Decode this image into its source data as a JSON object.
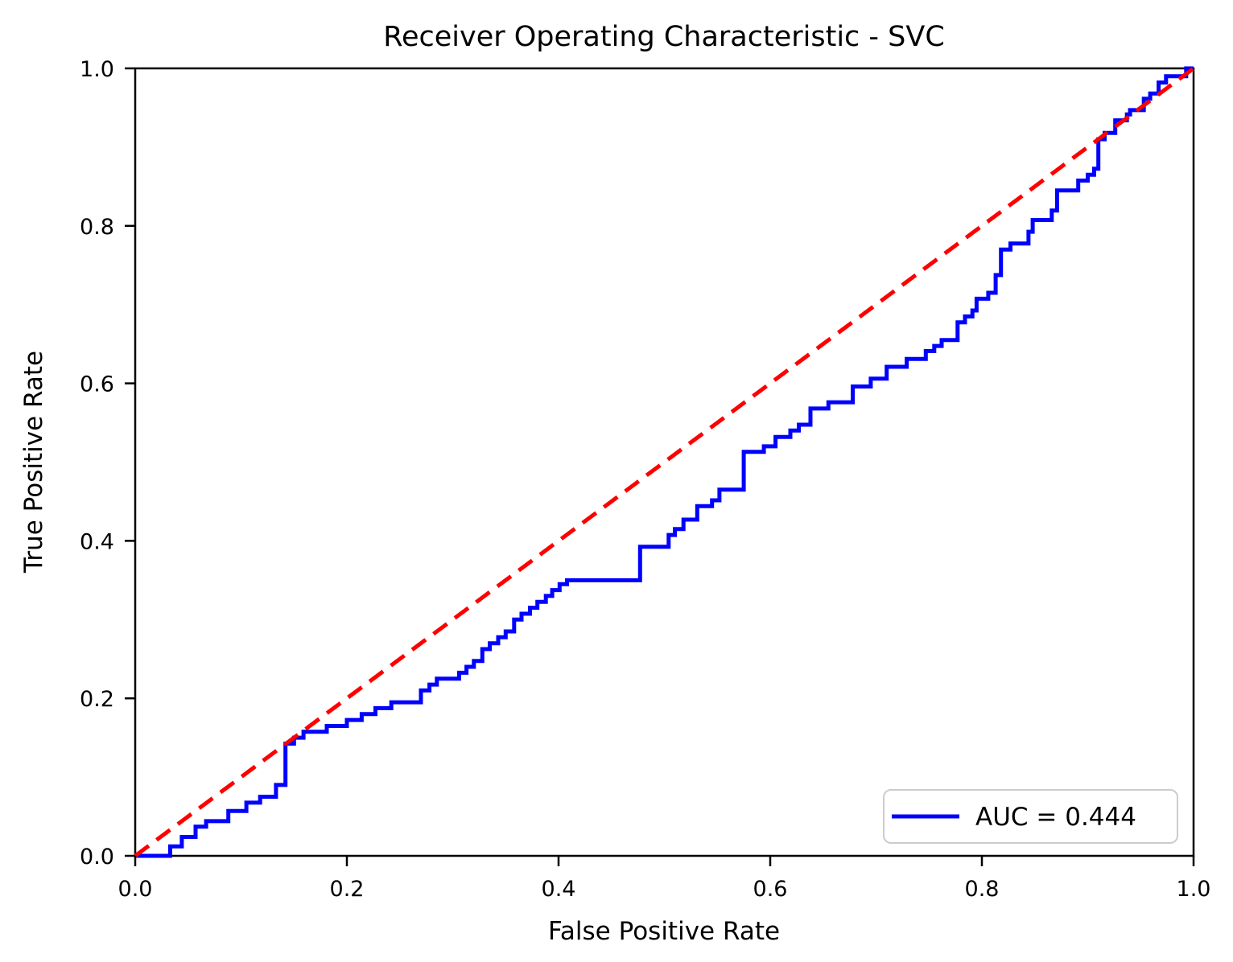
{
  "figure": {
    "background": "#ffffff"
  },
  "chart_data": {
    "type": "line",
    "title": "Receiver Operating Characteristic - SVC",
    "xlabel": "False Positive Rate",
    "ylabel": "True Positive Rate",
    "xlim": [
      0.0,
      1.0
    ],
    "ylim": [
      0.0,
      1.0
    ],
    "grid": false,
    "legend": {
      "label": "AUC = 0.444",
      "position": "lower right",
      "border_color": "#cccccc",
      "background": "#ffffff"
    },
    "auc": 0.444,
    "xticks": {
      "values": [
        0.0,
        0.2,
        0.4,
        0.6,
        0.8,
        1.0
      ],
      "labels": [
        "0.0",
        "0.2",
        "0.4",
        "0.6",
        "0.8",
        "1.0"
      ]
    },
    "yticks": {
      "values": [
        0.0,
        0.2,
        0.4,
        0.6,
        0.8,
        1.0
      ],
      "labels": [
        "0.0",
        "0.2",
        "0.4",
        "0.6",
        "0.8",
        "1.0"
      ]
    },
    "series": [
      {
        "name": "roc-curve",
        "color": "#0000ff",
        "line_style": "solid",
        "line_width": 5,
        "points": [
          [
            0.0,
            0.0
          ],
          [
            0.033,
            0.0
          ],
          [
            0.033,
            0.012
          ],
          [
            0.044,
            0.012
          ],
          [
            0.044,
            0.024
          ],
          [
            0.057,
            0.024
          ],
          [
            0.057,
            0.037
          ],
          [
            0.067,
            0.037
          ],
          [
            0.067,
            0.044
          ],
          [
            0.088,
            0.044
          ],
          [
            0.088,
            0.057
          ],
          [
            0.105,
            0.057
          ],
          [
            0.105,
            0.0675
          ],
          [
            0.118,
            0.0675
          ],
          [
            0.118,
            0.075
          ],
          [
            0.133,
            0.075
          ],
          [
            0.133,
            0.09
          ],
          [
            0.142,
            0.09
          ],
          [
            0.142,
            0.1425
          ],
          [
            0.15,
            0.1425
          ],
          [
            0.15,
            0.15
          ],
          [
            0.159,
            0.15
          ],
          [
            0.159,
            0.1575
          ],
          [
            0.181,
            0.1575
          ],
          [
            0.181,
            0.165
          ],
          [
            0.2,
            0.165
          ],
          [
            0.2,
            0.1725
          ],
          [
            0.214,
            0.1725
          ],
          [
            0.214,
            0.18
          ],
          [
            0.227,
            0.18
          ],
          [
            0.227,
            0.1875
          ],
          [
            0.242,
            0.1875
          ],
          [
            0.242,
            0.195
          ],
          [
            0.27,
            0.195
          ],
          [
            0.27,
            0.21
          ],
          [
            0.278,
            0.21
          ],
          [
            0.278,
            0.2175
          ],
          [
            0.285,
            0.2175
          ],
          [
            0.285,
            0.225
          ],
          [
            0.306,
            0.225
          ],
          [
            0.306,
            0.2325
          ],
          [
            0.313,
            0.2325
          ],
          [
            0.313,
            0.24
          ],
          [
            0.32,
            0.24
          ],
          [
            0.32,
            0.2475
          ],
          [
            0.328,
            0.2475
          ],
          [
            0.328,
            0.2625
          ],
          [
            0.335,
            0.2625
          ],
          [
            0.335,
            0.27
          ],
          [
            0.343,
            0.27
          ],
          [
            0.343,
            0.2775
          ],
          [
            0.35,
            0.2775
          ],
          [
            0.35,
            0.285
          ],
          [
            0.358,
            0.285
          ],
          [
            0.358,
            0.3
          ],
          [
            0.365,
            0.3
          ],
          [
            0.365,
            0.3075
          ],
          [
            0.373,
            0.3075
          ],
          [
            0.373,
            0.315
          ],
          [
            0.38,
            0.315
          ],
          [
            0.38,
            0.3225
          ],
          [
            0.388,
            0.3225
          ],
          [
            0.388,
            0.33
          ],
          [
            0.394,
            0.33
          ],
          [
            0.394,
            0.3375
          ],
          [
            0.401,
            0.3375
          ],
          [
            0.401,
            0.345
          ],
          [
            0.408,
            0.345
          ],
          [
            0.408,
            0.35
          ],
          [
            0.477,
            0.35
          ],
          [
            0.477,
            0.3925
          ],
          [
            0.504,
            0.3925
          ],
          [
            0.504,
            0.4075
          ],
          [
            0.51,
            0.4075
          ],
          [
            0.51,
            0.415
          ],
          [
            0.518,
            0.415
          ],
          [
            0.518,
            0.427
          ],
          [
            0.531,
            0.427
          ],
          [
            0.531,
            0.444
          ],
          [
            0.545,
            0.444
          ],
          [
            0.545,
            0.4515
          ],
          [
            0.552,
            0.4515
          ],
          [
            0.552,
            0.465
          ],
          [
            0.575,
            0.465
          ],
          [
            0.575,
            0.513
          ],
          [
            0.594,
            0.513
          ],
          [
            0.594,
            0.52
          ],
          [
            0.605,
            0.52
          ],
          [
            0.605,
            0.532
          ],
          [
            0.619,
            0.532
          ],
          [
            0.619,
            0.54
          ],
          [
            0.627,
            0.54
          ],
          [
            0.627,
            0.5475
          ],
          [
            0.638,
            0.5475
          ],
          [
            0.638,
            0.568
          ],
          [
            0.655,
            0.568
          ],
          [
            0.655,
            0.576
          ],
          [
            0.678,
            0.576
          ],
          [
            0.678,
            0.596
          ],
          [
            0.695,
            0.596
          ],
          [
            0.695,
            0.606
          ],
          [
            0.71,
            0.606
          ],
          [
            0.71,
            0.621
          ],
          [
            0.729,
            0.621
          ],
          [
            0.729,
            0.631
          ],
          [
            0.747,
            0.631
          ],
          [
            0.747,
            0.641
          ],
          [
            0.755,
            0.641
          ],
          [
            0.755,
            0.6475
          ],
          [
            0.762,
            0.6475
          ],
          [
            0.762,
            0.655
          ],
          [
            0.777,
            0.655
          ],
          [
            0.777,
            0.6775
          ],
          [
            0.784,
            0.6775
          ],
          [
            0.784,
            0.685
          ],
          [
            0.791,
            0.685
          ],
          [
            0.791,
            0.6925
          ],
          [
            0.795,
            0.6925
          ],
          [
            0.795,
            0.7075
          ],
          [
            0.806,
            0.7075
          ],
          [
            0.806,
            0.715
          ],
          [
            0.813,
            0.715
          ],
          [
            0.813,
            0.7375
          ],
          [
            0.818,
            0.7375
          ],
          [
            0.818,
            0.77
          ],
          [
            0.827,
            0.77
          ],
          [
            0.827,
            0.7775
          ],
          [
            0.844,
            0.7775
          ],
          [
            0.844,
            0.7925
          ],
          [
            0.848,
            0.7925
          ],
          [
            0.848,
            0.8075
          ],
          [
            0.866,
            0.8075
          ],
          [
            0.866,
            0.8195
          ],
          [
            0.871,
            0.8195
          ],
          [
            0.871,
            0.845
          ],
          [
            0.891,
            0.845
          ],
          [
            0.891,
            0.8575
          ],
          [
            0.9,
            0.8575
          ],
          [
            0.9,
            0.865
          ],
          [
            0.906,
            0.865
          ],
          [
            0.906,
            0.8725
          ],
          [
            0.91,
            0.8725
          ],
          [
            0.91,
            0.91
          ],
          [
            0.916,
            0.91
          ],
          [
            0.916,
            0.918
          ],
          [
            0.926,
            0.918
          ],
          [
            0.926,
            0.934
          ],
          [
            0.937,
            0.934
          ],
          [
            0.937,
            0.9415
          ],
          [
            0.94,
            0.9415
          ],
          [
            0.94,
            0.947
          ],
          [
            0.953,
            0.947
          ],
          [
            0.953,
            0.9615
          ],
          [
            0.959,
            0.9615
          ],
          [
            0.959,
            0.968
          ],
          [
            0.967,
            0.968
          ],
          [
            0.967,
            0.982
          ],
          [
            0.974,
            0.982
          ],
          [
            0.974,
            0.99
          ],
          [
            0.993,
            0.99
          ],
          [
            0.993,
            1.0
          ],
          [
            1.0,
            1.0
          ]
        ]
      },
      {
        "name": "chance-diagonal",
        "color": "#ff0000",
        "line_style": "dashed",
        "line_width": 5,
        "points": [
          [
            0.0,
            0.0
          ],
          [
            1.0,
            1.0
          ]
        ]
      }
    ]
  }
}
